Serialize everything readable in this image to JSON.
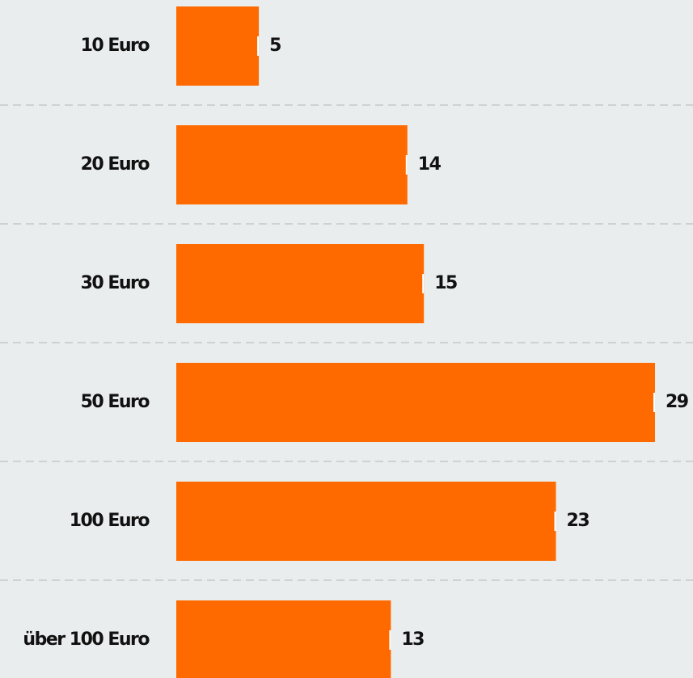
{
  "chart_data": {
    "type": "bar",
    "orientation": "horizontal",
    "categories": [
      "10 Euro",
      "20 Euro",
      "30 Euro",
      "50 Euro",
      "100 Euro",
      "über 100 Euro"
    ],
    "values": [
      5,
      14,
      15,
      29,
      23,
      13
    ],
    "color": "#ff6a00"
  }
}
